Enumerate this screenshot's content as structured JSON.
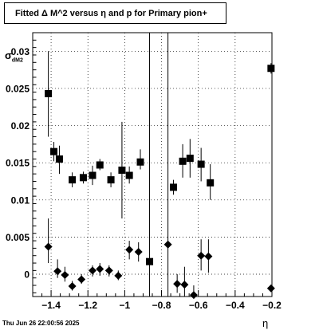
{
  "title": "Fitted Δ M^2 versus η and p for Primary pion+",
  "timestamp": "Thu Jun 26 22:00:56 2025",
  "chart_data": {
    "type": "scatter",
    "title": "Fitted Δ M^2 versus η and p for Primary pion+",
    "xlabel": "η",
    "ylabel": "σ",
    "ylabel_sub": "dM2",
    "xlim": [
      -1.5,
      -0.2
    ],
    "ylim": [
      -0.003,
      0.0325
    ],
    "grid": true,
    "x_ticks": [
      -1.4,
      -1.2,
      -1.0,
      -0.8,
      -0.6,
      -0.4,
      -0.2
    ],
    "x_tick_labels": [
      "−1.4",
      "−1.2",
      "−1",
      "−0.8",
      "−0.6",
      "−0.4",
      "−0.2"
    ],
    "y_ticks": [
      0,
      0.005,
      0.01,
      0.015,
      0.02,
      0.025,
      0.03
    ],
    "y_tick_labels": [
      "0",
      "0.005",
      "0.01",
      "0.015",
      "0.02",
      "0.025",
      "0.03"
    ],
    "series": [
      {
        "marker": "square",
        "points": [
          {
            "x": -1.415,
            "y": 0.0243,
            "lo": 0.0185,
            "hi": 0.03
          },
          {
            "x": -1.385,
            "y": 0.0165,
            "lo": 0.0152,
            "hi": 0.0178
          },
          {
            "x": -1.355,
            "y": 0.0155,
            "lo": 0.0135,
            "hi": 0.0173
          },
          {
            "x": -1.285,
            "y": 0.0127,
            "lo": 0.0117,
            "hi": 0.0137
          },
          {
            "x": -1.225,
            "y": 0.013,
            "lo": 0.0122,
            "hi": 0.0138
          },
          {
            "x": -1.175,
            "y": 0.0133,
            "lo": 0.012,
            "hi": 0.0146
          },
          {
            "x": -1.135,
            "y": 0.0147,
            "lo": 0.014,
            "hi": 0.0155
          },
          {
            "x": -1.075,
            "y": 0.0127,
            "lo": 0.0117,
            "hi": 0.0137
          },
          {
            "x": -1.015,
            "y": 0.014,
            "lo": 0.0075,
            "hi": 0.0205
          },
          {
            "x": -0.975,
            "y": 0.0133,
            "lo": 0.0122,
            "hi": 0.0145
          },
          {
            "x": -0.915,
            "y": 0.0151,
            "lo": 0.0141,
            "hi": 0.0168
          },
          {
            "x": -0.865,
            "y": 0.0017,
            "lo": -0.003,
            "hi": 0.0325
          },
          {
            "x": -0.735,
            "y": 0.0117,
            "lo": 0.0107,
            "hi": 0.0127
          },
          {
            "x": -0.685,
            "y": 0.0152,
            "lo": 0.013,
            "hi": 0.0175
          },
          {
            "x": -0.645,
            "y": 0.0156,
            "lo": 0.013,
            "hi": 0.0182
          },
          {
            "x": -0.585,
            "y": 0.0148,
            "lo": 0.0125,
            "hi": 0.017
          },
          {
            "x": -0.535,
            "y": 0.0123,
            "lo": 0.01,
            "hi": 0.0148
          },
          {
            "x": -0.205,
            "y": 0.0277,
            "lo": 0.027,
            "hi": 0.0284
          }
        ]
      },
      {
        "marker": "diamond",
        "points": [
          {
            "x": -1.415,
            "y": 0.0037,
            "lo": 0.0015,
            "hi": 0.0075
          },
          {
            "x": -1.365,
            "y": 0.0004,
            "lo": -0.0005,
            "hi": 0.002
          },
          {
            "x": -1.325,
            "y": -0.0001,
            "lo": -0.001,
            "hi": 0.001
          },
          {
            "x": -1.285,
            "y": -0.0016,
            "lo": -0.0022,
            "hi": -0.0009
          },
          {
            "x": -1.235,
            "y": -0.0007,
            "lo": -0.0013,
            "hi": 0.0
          },
          {
            "x": -1.175,
            "y": 0.0005,
            "lo": -0.0003,
            "hi": 0.0012
          },
          {
            "x": -1.135,
            "y": 0.0007,
            "lo": -0.0002,
            "hi": 0.0015
          },
          {
            "x": -1.085,
            "y": 0.0005,
            "lo": -0.0003,
            "hi": 0.0012
          },
          {
            "x": -1.035,
            "y": -0.0002,
            "lo": -0.0008,
            "hi": 0.0005
          },
          {
            "x": -0.975,
            "y": 0.0033,
            "lo": 0.002,
            "hi": 0.0045
          },
          {
            "x": -0.925,
            "y": 0.003,
            "lo": 0.0017,
            "hi": 0.0043
          },
          {
            "x": -0.765,
            "y": 0.004,
            "lo": -0.003,
            "hi": 0.0325
          },
          {
            "x": -0.715,
            "y": -0.0013,
            "lo": -0.0025,
            "hi": 0.0
          },
          {
            "x": -0.675,
            "y": -0.0014,
            "lo": -0.003,
            "hi": 0.001
          },
          {
            "x": -0.625,
            "y": -0.0028,
            "lo": -0.003,
            "hi": -0.0015
          },
          {
            "x": -0.585,
            "y": 0.0025,
            "lo": 0.0005,
            "hi": 0.0047
          },
          {
            "x": -0.545,
            "y": 0.0024,
            "lo": 0.0002,
            "hi": 0.0047
          },
          {
            "x": -0.205,
            "y": -0.0019,
            "lo": -0.0023,
            "hi": -0.0015
          }
        ]
      }
    ]
  }
}
